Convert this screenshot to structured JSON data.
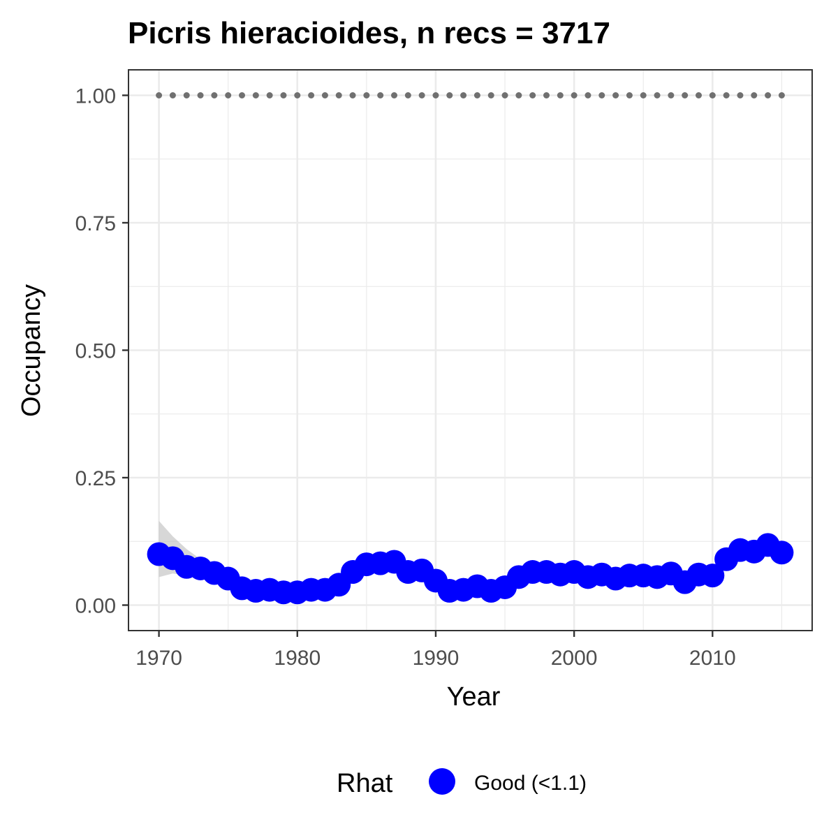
{
  "chart_data": {
    "type": "scatter",
    "title": "Picris hieracioides, n recs = 3717",
    "xlabel": "Year",
    "ylabel": "Occupancy",
    "xlim": [
      1967.8,
      2017.2
    ],
    "ylim": [
      -0.05,
      1.05
    ],
    "x_ticks": [
      1970,
      1980,
      1990,
      2000,
      2010
    ],
    "x_tick_labels": [
      "1970",
      "1980",
      "1990",
      "2000",
      "2010"
    ],
    "y_ticks": [
      0,
      0.25,
      0.5,
      0.75,
      1.0
    ],
    "y_tick_labels": [
      "0.00",
      "0.25",
      "0.50",
      "0.75",
      "1.00"
    ],
    "grid": true,
    "colors": {
      "points": "#0000ff",
      "reference_points": "#707070",
      "ribbon": "#bdbdbd",
      "grid": "#ebebeb",
      "panel_border": "#333333"
    },
    "x": [
      1970,
      1971,
      1972,
      1973,
      1974,
      1975,
      1976,
      1977,
      1978,
      1979,
      1980,
      1981,
      1982,
      1983,
      1984,
      1985,
      1986,
      1987,
      1988,
      1989,
      1990,
      1991,
      1992,
      1993,
      1994,
      1995,
      1996,
      1997,
      1998,
      1999,
      2000,
      2001,
      2002,
      2003,
      2004,
      2005,
      2006,
      2007,
      2008,
      2009,
      2010,
      2011,
      2012,
      2013,
      2014,
      2015
    ],
    "series": [
      {
        "name": "Good (<1.1)",
        "values": [
          0.1,
          0.092,
          0.075,
          0.072,
          0.063,
          0.052,
          0.033,
          0.028,
          0.03,
          0.025,
          0.025,
          0.03,
          0.03,
          0.04,
          0.065,
          0.08,
          0.082,
          0.085,
          0.065,
          0.068,
          0.048,
          0.028,
          0.03,
          0.037,
          0.028,
          0.035,
          0.055,
          0.065,
          0.065,
          0.06,
          0.065,
          0.055,
          0.06,
          0.052,
          0.058,
          0.058,
          0.055,
          0.062,
          0.045,
          0.06,
          0.058,
          0.09,
          0.108,
          0.105,
          0.118,
          0.103
        ]
      },
      {
        "values": [
          1,
          1,
          1,
          1,
          1,
          1,
          1,
          1,
          1,
          1,
          1,
          1,
          1,
          1,
          1,
          1,
          1,
          1,
          1,
          1,
          1,
          1,
          1,
          1,
          1,
          1,
          1,
          1,
          1,
          1,
          1,
          1,
          1,
          1,
          1,
          1,
          1,
          1,
          1,
          1,
          1,
          1,
          1,
          1,
          1,
          1
        ]
      }
    ],
    "ribbon": {
      "x": [
        1970,
        1971,
        1972,
        1973,
        1974,
        1975
      ],
      "upper": [
        0.165,
        0.135,
        0.11,
        0.09,
        0.072,
        0.058
      ],
      "lower": [
        0.055,
        0.062,
        0.058,
        0.056,
        0.05,
        0.045
      ]
    },
    "legend": {
      "title": "Rhat",
      "entries": [
        "Good (<1.1)"
      ],
      "position": "bottom"
    }
  }
}
